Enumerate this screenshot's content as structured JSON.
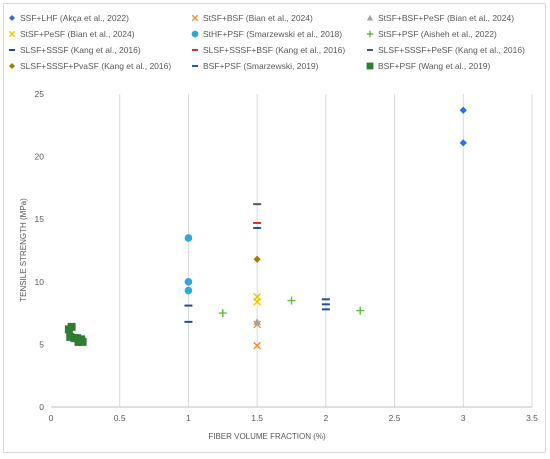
{
  "chart_data": {
    "type": "scatter",
    "title": "",
    "xlabel": "FIBER VOLUME FRACTION (%)",
    "ylabel": "TENSILE STRENGTH (MPa)",
    "xlim": [
      0,
      3.5
    ],
    "ylim": [
      0,
      25
    ],
    "xticks": [
      0,
      0.5,
      1,
      1.5,
      2,
      2.5,
      3,
      3.5
    ],
    "xtick_labels": [
      "0",
      "0.5",
      "1",
      "1.5",
      "2",
      "2.5",
      "3",
      "3.5"
    ],
    "yticks": [
      0,
      5,
      10,
      15,
      20,
      25
    ],
    "ytick_labels": [
      "0",
      "5",
      "10",
      "15",
      "20",
      "25"
    ],
    "grid": "vertical",
    "legend_position": "top",
    "series": [
      {
        "name": "SSF+LHF (Akça et al., 2022)",
        "marker": "diamond",
        "color": "#2f6fd6",
        "points": [
          {
            "x": 3.0,
            "y": 23.7
          },
          {
            "x": 3.0,
            "y": 21.1
          }
        ]
      },
      {
        "name": "StSF+BSF (Bian et al., 2024)",
        "marker": "x",
        "color": "#f08c32",
        "points": [
          {
            "x": 1.5,
            "y": 6.6
          },
          {
            "x": 1.5,
            "y": 4.9
          }
        ]
      },
      {
        "name": "StSF+BSF+PeSF (Bian et al., 2024)",
        "marker": "triangle",
        "color": "#a5a5a5",
        "points": [
          {
            "x": 1.5,
            "y": 6.8
          }
        ]
      },
      {
        "name": "StSF+PeSF (Bian et al., 2024)",
        "marker": "x",
        "color": "#f2c400",
        "points": [
          {
            "x": 1.5,
            "y": 8.8
          },
          {
            "x": 1.5,
            "y": 8.4
          }
        ]
      },
      {
        "name": "StHF+PSF (Smarzewski et al., 2018)",
        "marker": "circle",
        "color": "#2ea8df",
        "points": [
          {
            "x": 1.0,
            "y": 13.5
          },
          {
            "x": 1.0,
            "y": 10.0
          },
          {
            "x": 1.0,
            "y": 9.3
          }
        ]
      },
      {
        "name": "StSF+PSF (Aisheh et al., 2022)",
        "marker": "plus",
        "color": "#5fba3c",
        "points": [
          {
            "x": 1.25,
            "y": 7.5
          },
          {
            "x": 1.75,
            "y": 8.5
          },
          {
            "x": 2.25,
            "y": 7.7
          }
        ]
      },
      {
        "name": "SLSF+SSSF (Kang et al., 2016)",
        "marker": "dash",
        "color": "#1f4e9c",
        "points": [
          {
            "x": 1.0,
            "y": 8.1
          },
          {
            "x": 1.0,
            "y": 6.8
          },
          {
            "x": 1.5,
            "y": 14.3
          },
          {
            "x": 2.0,
            "y": 8.6
          },
          {
            "x": 2.0,
            "y": 8.2
          },
          {
            "x": 2.0,
            "y": 7.8
          }
        ]
      },
      {
        "name": "SLSF+SSSF+BSF (Kang et al., 2016)",
        "marker": "dash",
        "color": "#c0392b",
        "points": [
          {
            "x": 1.5,
            "y": 14.7
          }
        ]
      },
      {
        "name": "SLSF+SSSF+PeSF (Kang et al., 2016)",
        "marker": "dash",
        "color": "#555555",
        "points": [
          {
            "x": 1.5,
            "y": 16.2
          }
        ]
      },
      {
        "name": "SLSF+SSSF+PvaSF (Kang et al., 2016)",
        "marker": "diamond",
        "color": "#a67c00",
        "points": [
          {
            "x": 1.5,
            "y": 11.8
          }
        ]
      },
      {
        "name": "BSF+PSF (Smarzewski, 2019)",
        "marker": "dash",
        "color": "#1f5fae",
        "points": []
      },
      {
        "name": "BSF+PSF (Wang et al., 2019)",
        "marker": "square",
        "color": "#2e7d32",
        "points": [
          {
            "x": 0.13,
            "y": 6.2
          },
          {
            "x": 0.15,
            "y": 6.4
          },
          {
            "x": 0.14,
            "y": 5.6
          },
          {
            "x": 0.17,
            "y": 5.5
          },
          {
            "x": 0.19,
            "y": 5.5
          },
          {
            "x": 0.2,
            "y": 5.2
          },
          {
            "x": 0.22,
            "y": 5.4
          },
          {
            "x": 0.23,
            "y": 5.2
          }
        ]
      }
    ]
  }
}
